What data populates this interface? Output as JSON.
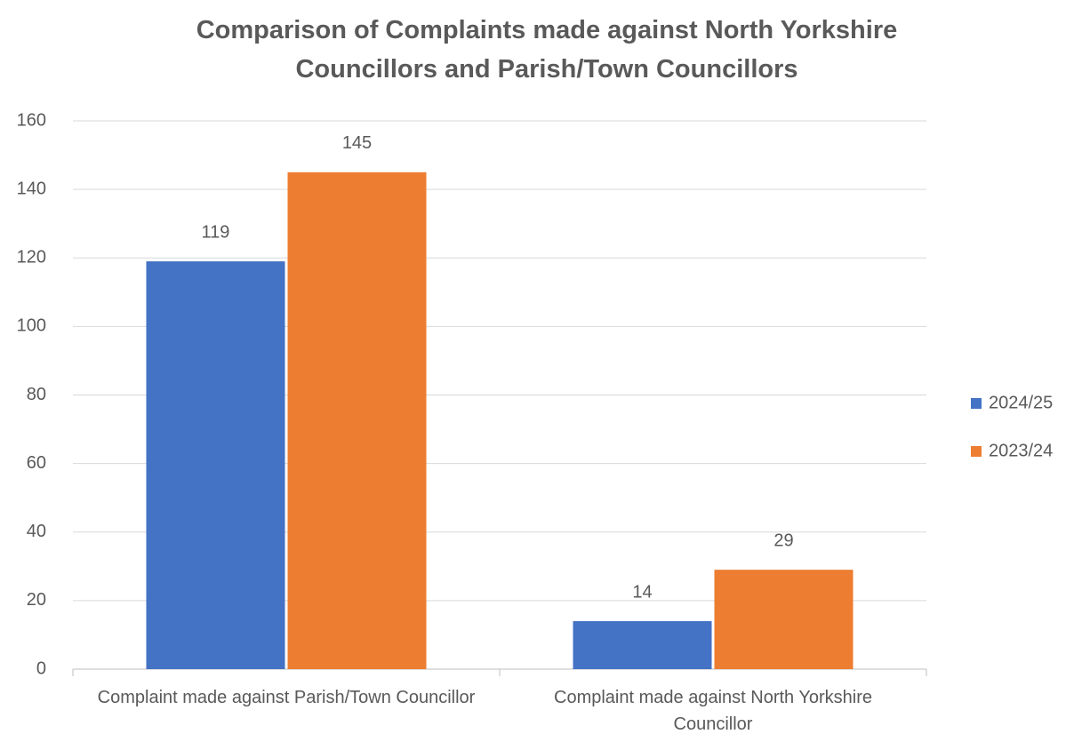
{
  "chart_data": {
    "type": "bar",
    "title": "Comparison of Complaints made against North Yorkshire Councillors and Parish/Town Councillors",
    "categories": [
      "Complaint made against Parish/Town Councillor",
      "Complaint made against North Yorkshire Councillor"
    ],
    "series": [
      {
        "name": "2024/25",
        "color": "#4472c4",
        "values": [
          119,
          14
        ]
      },
      {
        "name": "2023/24",
        "color": "#ed7d31",
        "values": [
          145,
          29
        ]
      }
    ],
    "ylim": [
      0,
      160
    ],
    "yticks": [
      0,
      20,
      40,
      60,
      80,
      100,
      120,
      140,
      160
    ],
    "grid": true,
    "legend": "right"
  }
}
